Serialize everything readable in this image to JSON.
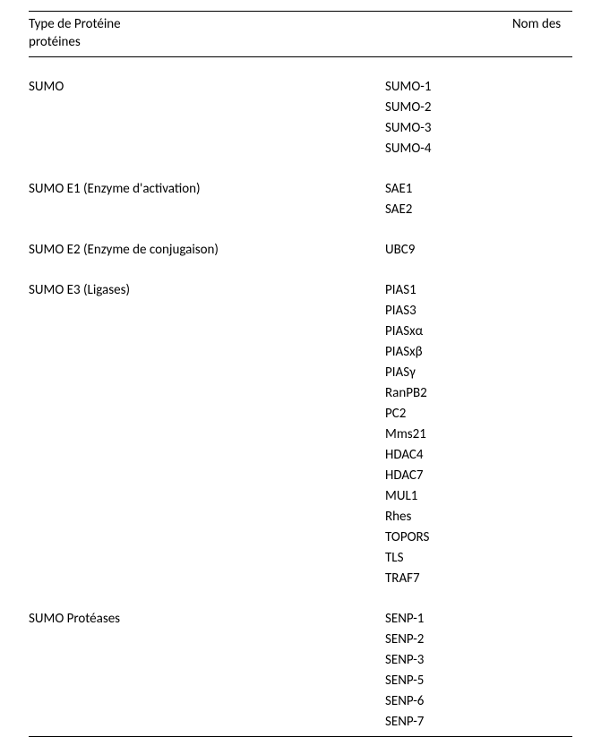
{
  "header": {
    "col1_part1": "Type de Protéine",
    "col1_part2": "protéines",
    "col2": "Nom des"
  },
  "groups": [
    {
      "type": "SUMO",
      "items": [
        "SUMO-1",
        "SUMO-2",
        "SUMO-3",
        "SUMO-4"
      ]
    },
    {
      "type": "SUMO E1 (Enzyme d'activation)",
      "items": [
        "SAE1",
        "SAE2"
      ]
    },
    {
      "type": "SUMO E2 (Enzyme de conjugaison)",
      "items": [
        "UBC9"
      ]
    },
    {
      "type": "SUMO E3 (Ligases)",
      "items": [
        "PIAS1",
        "PIAS3",
        "PIASxα",
        "PIASxβ",
        "PIASγ",
        "RanPB2",
        "PC2",
        "Mms21",
        "HDAC4",
        "HDAC7",
        "MUL1",
        "Rhes",
        "TOPORS",
        "TLS",
        "TRAF7"
      ]
    },
    {
      "type": "SUMO Protéases",
      "items": [
        "SENP-1",
        "SENP-2",
        "SENP-3",
        "SENP-5",
        "SENP-6",
        "SENP-7"
      ]
    }
  ]
}
